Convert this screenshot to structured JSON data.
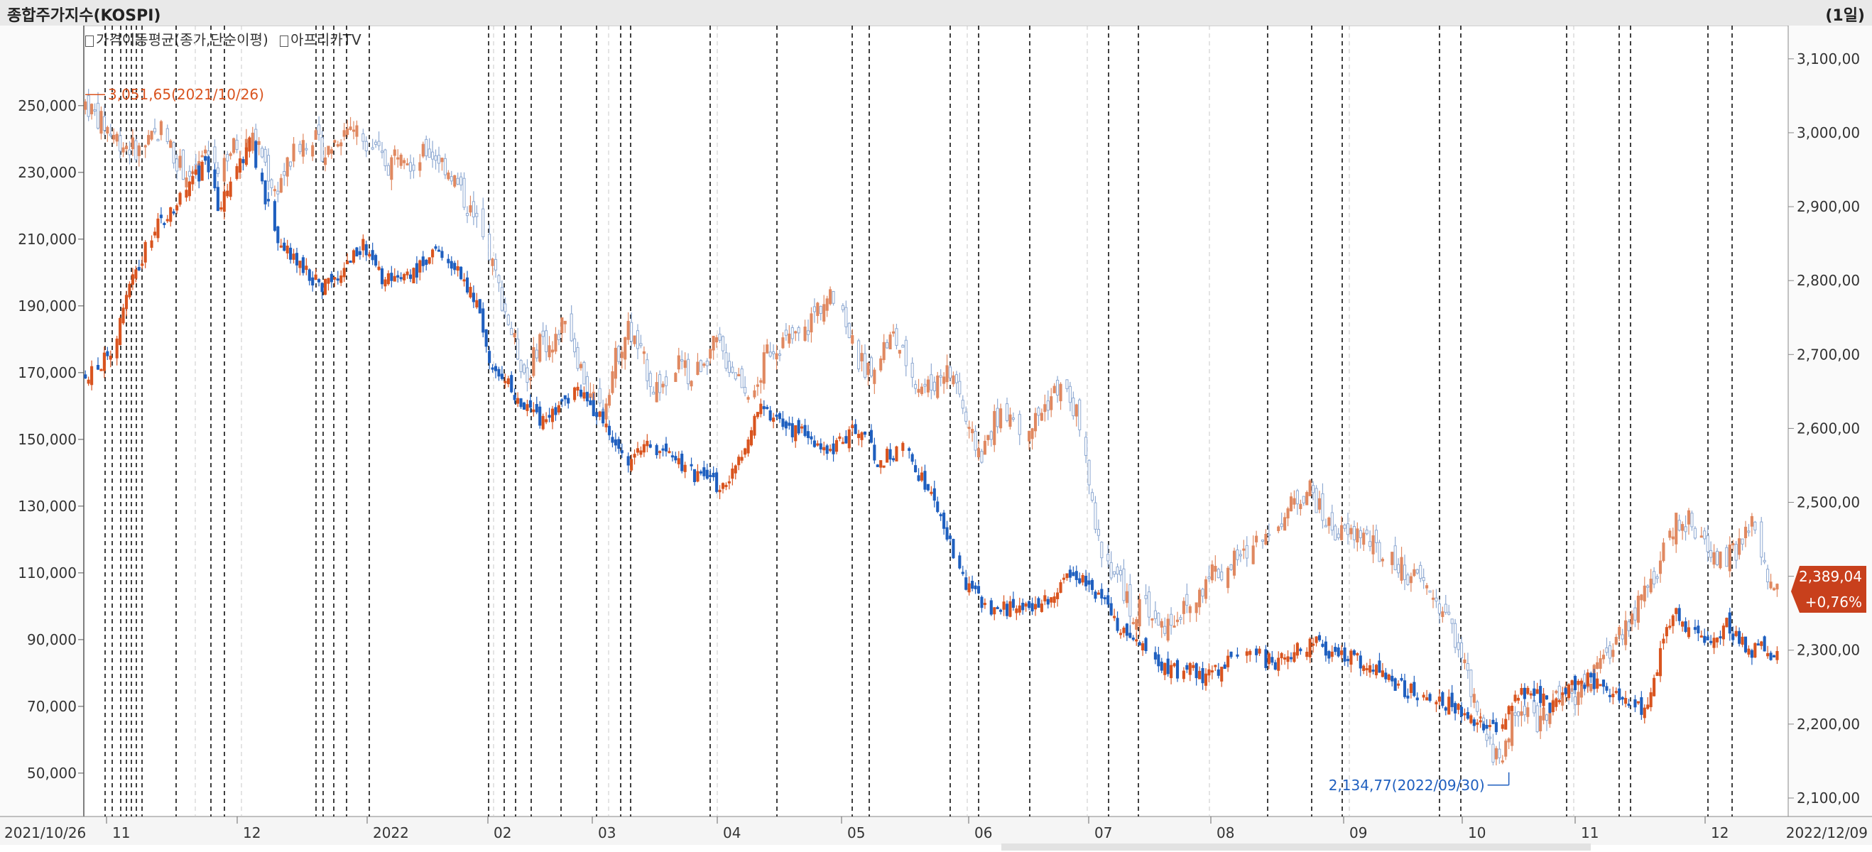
{
  "header": {
    "title": "종합주가지수(KOSPI)",
    "period": "(1일)"
  },
  "legend": {
    "item1": "가격이동평균(종가,단순이평)",
    "item2": "아프리카TV"
  },
  "colors": {
    "up": "#d9541f",
    "down": "#1f5fbf",
    "kospi_up": "#e08860",
    "kospi_down": "#8ea9d2",
    "kospi_badge": "#c8401c"
  },
  "chart_data": {
    "type": "candlestick",
    "x_range": [
      "2021/10/26",
      "2022/12/09"
    ],
    "x_labels": [
      "2021/10/26",
      "11",
      "12",
      "2022",
      "02",
      "03",
      "04",
      "05",
      "06",
      "07",
      "08",
      "09",
      "10",
      "11",
      "12",
      "2022/12/09"
    ],
    "left_axis": {
      "ticks": [
        50000,
        70000,
        90000,
        110000,
        130000,
        150000,
        170000,
        190000,
        210000,
        230000,
        250000
      ],
      "tick_labels": [
        "50,000",
        "70,000",
        "90,000",
        "110,000",
        "130,000",
        "150,000",
        "170,000",
        "190,000",
        "210,000",
        "230,000",
        "250,000"
      ],
      "range": [
        37000,
        274000
      ]
    },
    "right_axis": {
      "ticks": [
        2100,
        2200,
        2300,
        2400,
        2500,
        2600,
        2700,
        2800,
        2900,
        3000,
        3100
      ],
      "tick_labels": [
        "2,100,00",
        "2,200,00",
        "2,300,00",
        "2,400,00",
        "2,500,00",
        "2,600,00",
        "2,700,00",
        "2,800,00",
        "2,900,00",
        "3,000,00",
        "3,100,00"
      ],
      "range": [
        2075,
        3145
      ]
    },
    "annotations": {
      "high": {
        "value": 3051.65,
        "label": "3,051,65(2021/10/26)"
      },
      "low": {
        "value": 2134.77,
        "label": "2,134,77(2022/09/30)"
      }
    },
    "kospi_current": {
      "price": "2,389,04",
      "change": "+0,76%"
    },
    "series": [
      {
        "name": "아프리카TV",
        "axis": "left",
        "close_path": [
          [
            0,
            168000
          ],
          [
            8,
            176000
          ],
          [
            14,
            195000
          ],
          [
            20,
            210000
          ],
          [
            26,
            218000
          ],
          [
            32,
            225000
          ],
          [
            38,
            232000
          ],
          [
            42,
            220000
          ],
          [
            48,
            230000
          ],
          [
            52,
            238000
          ],
          [
            56,
            226000
          ],
          [
            60,
            212000
          ],
          [
            65,
            206000
          ],
          [
            70,
            200000
          ],
          [
            76,
            196000
          ],
          [
            82,
            202000
          ],
          [
            88,
            208000
          ],
          [
            94,
            198000
          ],
          [
            100,
            196000
          ],
          [
            106,
            202000
          ],
          [
            112,
            207000
          ],
          [
            118,
            200000
          ],
          [
            124,
            190000
          ],
          [
            128,
            174000
          ],
          [
            134,
            166000
          ],
          [
            140,
            160000
          ],
          [
            146,
            154000
          ],
          [
            150,
            161000
          ],
          [
            156,
            164000
          ],
          [
            162,
            158000
          ],
          [
            166,
            151000
          ],
          [
            172,
            142000
          ],
          [
            178,
            150000
          ],
          [
            184,
            145000
          ],
          [
            190,
            141000
          ],
          [
            196,
            138000
          ],
          [
            202,
            135000
          ],
          [
            206,
            143000
          ],
          [
            210,
            151000
          ],
          [
            214,
            159000
          ],
          [
            218,
            156000
          ],
          [
            222,
            152000
          ],
          [
            226,
            154000
          ],
          [
            230,
            148000
          ],
          [
            236,
            145000
          ],
          [
            240,
            150000
          ],
          [
            244,
            154000
          ],
          [
            248,
            148000
          ],
          [
            252,
            143000
          ],
          [
            258,
            148000
          ],
          [
            262,
            143000
          ],
          [
            266,
            137000
          ],
          [
            270,
            128000
          ],
          [
            274,
            119000
          ],
          [
            278,
            108000
          ],
          [
            282,
            104000
          ],
          [
            286,
            100000
          ],
          [
            290,
            99000
          ],
          [
            294,
            100000
          ],
          [
            298,
            101000
          ],
          [
            302,
            100000
          ],
          [
            306,
            104000
          ],
          [
            310,
            108000
          ],
          [
            314,
            110000
          ],
          [
            318,
            107000
          ],
          [
            322,
            102000
          ],
          [
            326,
            96000
          ],
          [
            330,
            92000
          ],
          [
            334,
            87000
          ],
          [
            338,
            85000
          ],
          [
            342,
            82000
          ],
          [
            346,
            80000
          ],
          [
            350,
            82000
          ],
          [
            354,
            79000
          ],
          [
            358,
            80000
          ],
          [
            362,
            83000
          ],
          [
            366,
            85000
          ],
          [
            370,
            86000
          ],
          [
            374,
            84000
          ],
          [
            378,
            83000
          ],
          [
            382,
            86000
          ],
          [
            386,
            88000
          ],
          [
            390,
            90000
          ],
          [
            394,
            86000
          ],
          [
            398,
            86000
          ],
          [
            402,
            85000
          ],
          [
            406,
            82000
          ],
          [
            410,
            80000
          ],
          [
            414,
            77000
          ],
          [
            418,
            75000
          ],
          [
            422,
            74000
          ],
          [
            426,
            73000
          ],
          [
            430,
            71000
          ],
          [
            434,
            70000
          ],
          [
            438,
            68000
          ],
          [
            442,
            65000
          ],
          [
            446,
            63000
          ],
          [
            449,
            64000
          ],
          [
            452,
            71000
          ],
          [
            456,
            74000
          ],
          [
            460,
            73000
          ],
          [
            464,
            70000
          ],
          [
            468,
            74000
          ],
          [
            472,
            77000
          ],
          [
            476,
            78000
          ],
          [
            480,
            76000
          ],
          [
            484,
            74000
          ],
          [
            488,
            70000
          ],
          [
            492,
            69000
          ],
          [
            496,
            72000
          ],
          [
            500,
            91000
          ],
          [
            504,
            97000
          ],
          [
            508,
            94000
          ],
          [
            512,
            92000
          ],
          [
            516,
            89000
          ],
          [
            520,
            94000
          ],
          [
            524,
            90000
          ],
          [
            528,
            87000
          ],
          [
            532,
            88000
          ],
          [
            534,
            85000
          ],
          [
            536,
            87000
          ]
        ]
      },
      {
        "name": "종합주가지수(KOSPI)",
        "axis": "right",
        "close_path": [
          [
            0,
            3040
          ],
          [
            6,
            3010
          ],
          [
            12,
            2985
          ],
          [
            18,
            2975
          ],
          [
            24,
            3005
          ],
          [
            30,
            2955
          ],
          [
            34,
            2935
          ],
          [
            38,
            2975
          ],
          [
            42,
            2955
          ],
          [
            48,
            2985
          ],
          [
            52,
            2995
          ],
          [
            56,
            2970
          ],
          [
            60,
            2920
          ],
          [
            64,
            2955
          ],
          [
            68,
            2985
          ],
          [
            72,
            2995
          ],
          [
            76,
            2970
          ],
          [
            80,
            2995
          ],
          [
            84,
            3010
          ],
          [
            88,
            2995
          ],
          [
            92,
            2975
          ],
          [
            96,
            2955
          ],
          [
            100,
            2985
          ],
          [
            104,
            2955
          ],
          [
            108,
            2975
          ],
          [
            112,
            2965
          ],
          [
            116,
            2945
          ],
          [
            120,
            2910
          ],
          [
            124,
            2875
          ],
          [
            128,
            2835
          ],
          [
            132,
            2775
          ],
          [
            136,
            2715
          ],
          [
            140,
            2665
          ],
          [
            144,
            2725
          ],
          [
            148,
            2705
          ],
          [
            152,
            2755
          ],
          [
            156,
            2695
          ],
          [
            160,
            2640
          ],
          [
            164,
            2625
          ],
          [
            168,
            2695
          ],
          [
            172,
            2735
          ],
          [
            176,
            2700
          ],
          [
            180,
            2655
          ],
          [
            184,
            2660
          ],
          [
            188,
            2690
          ],
          [
            192,
            2665
          ],
          [
            196,
            2695
          ],
          [
            200,
            2715
          ],
          [
            204,
            2685
          ],
          [
            208,
            2665
          ],
          [
            212,
            2640
          ],
          [
            216,
            2705
          ],
          [
            220,
            2715
          ],
          [
            224,
            2720
          ],
          [
            228,
            2730
          ],
          [
            232,
            2765
          ],
          [
            236,
            2775
          ],
          [
            240,
            2760
          ],
          [
            244,
            2695
          ],
          [
            248,
            2680
          ],
          [
            252,
            2705
          ],
          [
            256,
            2725
          ],
          [
            260,
            2690
          ],
          [
            264,
            2660
          ],
          [
            268,
            2655
          ],
          [
            272,
            2680
          ],
          [
            276,
            2665
          ],
          [
            280,
            2590
          ],
          [
            284,
            2565
          ],
          [
            288,
            2610
          ],
          [
            292,
            2625
          ],
          [
            296,
            2600
          ],
          [
            300,
            2605
          ],
          [
            304,
            2630
          ],
          [
            308,
            2655
          ],
          [
            312,
            2640
          ],
          [
            316,
            2595
          ],
          [
            320,
            2455
          ],
          [
            324,
            2420
          ],
          [
            328,
            2390
          ],
          [
            332,
            2345
          ],
          [
            336,
            2365
          ],
          [
            340,
            2330
          ],
          [
            344,
            2340
          ],
          [
            348,
            2355
          ],
          [
            352,
            2365
          ],
          [
            356,
            2410
          ],
          [
            360,
            2405
          ],
          [
            364,
            2420
          ],
          [
            368,
            2430
          ],
          [
            372,
            2450
          ],
          [
            376,
            2470
          ],
          [
            380,
            2485
          ],
          [
            384,
            2505
          ],
          [
            388,
            2520
          ],
          [
            392,
            2480
          ],
          [
            396,
            2460
          ],
          [
            400,
            2455
          ],
          [
            404,
            2460
          ],
          [
            408,
            2440
          ],
          [
            412,
            2420
          ],
          [
            416,
            2415
          ],
          [
            420,
            2400
          ],
          [
            424,
            2390
          ],
          [
            428,
            2365
          ],
          [
            432,
            2340
          ],
          [
            436,
            2295
          ],
          [
            440,
            2225
          ],
          [
            444,
            2175
          ],
          [
            448,
            2150
          ],
          [
            452,
            2205
          ],
          [
            456,
            2220
          ],
          [
            460,
            2205
          ],
          [
            464,
            2225
          ],
          [
            468,
            2235
          ],
          [
            472,
            2240
          ],
          [
            476,
            2260
          ],
          [
            480,
            2275
          ],
          [
            484,
            2310
          ],
          [
            488,
            2335
          ],
          [
            492,
            2360
          ],
          [
            496,
            2390
          ],
          [
            500,
            2430
          ],
          [
            504,
            2475
          ],
          [
            508,
            2475
          ],
          [
            512,
            2450
          ],
          [
            516,
            2430
          ],
          [
            520,
            2425
          ],
          [
            524,
            2440
          ],
          [
            528,
            2470
          ],
          [
            530,
            2440
          ],
          [
            532,
            2410
          ],
          [
            534,
            2385
          ],
          [
            536,
            2389
          ]
        ]
      }
    ]
  }
}
